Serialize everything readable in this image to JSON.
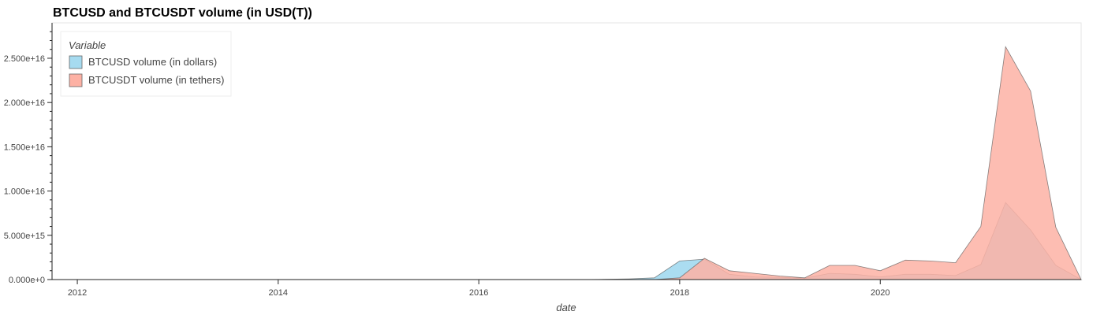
{
  "chart_data": {
    "type": "area",
    "title": "BTCUSD and BTCUSDT volume (in USD(T))",
    "xlabel": "date",
    "ylabel": "",
    "x_ticks": [
      "2012",
      "2014",
      "2016",
      "2018",
      "2020"
    ],
    "y_ticks": [
      "0.000e+0",
      "5.000e+15",
      "1.000e+16",
      "1.500e+16",
      "2.000e+16",
      "2.500e+16"
    ],
    "ylim": [
      0,
      29000000000000000
    ],
    "grid": false,
    "legend": {
      "title": "Variable",
      "placement": "top-left"
    },
    "series": [
      {
        "name": "BTCUSD volume (in dollars)",
        "color": "#a6dbf0",
        "points": [
          [
            "2011-10-01",
            0
          ],
          [
            "2012-01-01",
            0
          ],
          [
            "2013-01-01",
            0
          ],
          [
            "2014-01-01",
            0
          ],
          [
            "2015-01-01",
            0
          ],
          [
            "2016-01-01",
            0
          ],
          [
            "2017-01-01",
            0
          ],
          [
            "2017-04-01",
            30000000000000
          ],
          [
            "2017-07-01",
            80000000000000
          ],
          [
            "2017-10-01",
            200000000000000
          ],
          [
            "2018-01-01",
            2100000000000000
          ],
          [
            "2018-04-01",
            2300000000000000
          ],
          [
            "2018-07-01",
            600000000000000
          ],
          [
            "2018-10-01",
            300000000000000
          ],
          [
            "2019-01-01",
            250000000000000
          ],
          [
            "2019-04-01",
            150000000000000
          ],
          [
            "2019-07-01",
            700000000000000
          ],
          [
            "2019-10-01",
            600000000000000
          ],
          [
            "2020-01-01",
            300000000000000
          ],
          [
            "2020-04-01",
            600000000000000
          ],
          [
            "2020-07-01",
            600000000000000
          ],
          [
            "2020-10-01",
            450000000000000
          ],
          [
            "2021-01-01",
            1700000000000000
          ],
          [
            "2021-04-01",
            8700000000000000
          ],
          [
            "2021-07-01",
            5600000000000000
          ],
          [
            "2021-10-01",
            1600000000000000
          ],
          [
            "2022-01-01",
            0
          ]
        ]
      },
      {
        "name": "BTCUSDT volume (in tethers)",
        "color": "#fdb1a4",
        "points": [
          [
            "2011-10-01",
            0
          ],
          [
            "2012-01-01",
            0
          ],
          [
            "2014-01-01",
            0
          ],
          [
            "2016-01-01",
            0
          ],
          [
            "2017-10-01",
            0
          ],
          [
            "2018-01-01",
            200000000000000
          ],
          [
            "2018-04-01",
            2400000000000000
          ],
          [
            "2018-07-01",
            1000000000000000
          ],
          [
            "2018-10-01",
            700000000000000
          ],
          [
            "2019-01-01",
            400000000000000
          ],
          [
            "2019-04-01",
            200000000000000
          ],
          [
            "2019-07-01",
            1600000000000000
          ],
          [
            "2019-10-01",
            1600000000000000
          ],
          [
            "2020-01-01",
            1000000000000000
          ],
          [
            "2020-04-01",
            2200000000000000
          ],
          [
            "2020-07-01",
            2100000000000000
          ],
          [
            "2020-10-01",
            1900000000000000
          ],
          [
            "2021-01-01",
            6000000000000000
          ],
          [
            "2021-04-01",
            26300000000000000
          ],
          [
            "2021-07-01",
            21300000000000000
          ],
          [
            "2021-10-01",
            5900000000000000
          ],
          [
            "2022-01-01",
            0
          ]
        ]
      }
    ]
  }
}
